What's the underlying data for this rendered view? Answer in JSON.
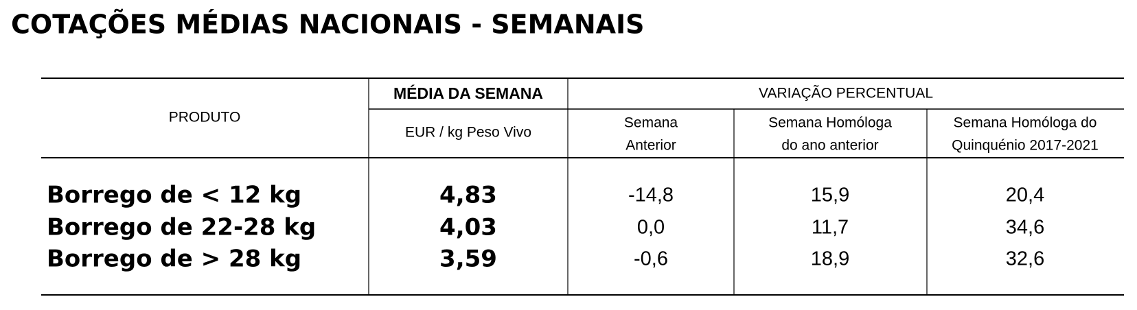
{
  "title": "COTAÇÕES MÉDIAS NACIONAIS - SEMANAIS",
  "table": {
    "header": {
      "produto": "PRODUTO",
      "media": "MÉDIA DA SEMANA",
      "unit": "EUR / kg Peso Vivo",
      "variacao": "VARIAÇÃO PERCENTUAL",
      "columns": [
        [
          "Semana",
          "Anterior"
        ],
        [
          "Semana Homóloga",
          "do ano anterior"
        ],
        [
          "Semana Homóloga do",
          "Quinquénio 2017-2021"
        ]
      ]
    },
    "rows": [
      [
        "Borrego de < 12 kg",
        "4,83",
        "-14,8",
        "15,9",
        "20,4"
      ],
      [
        "Borrego de 22-28 kg",
        "4,03",
        "0,0",
        "11,7",
        "34,6"
      ],
      [
        "Borrego de > 28 kg",
        "3,59",
        "-0,6",
        "18,9",
        "32,6"
      ]
    ]
  }
}
